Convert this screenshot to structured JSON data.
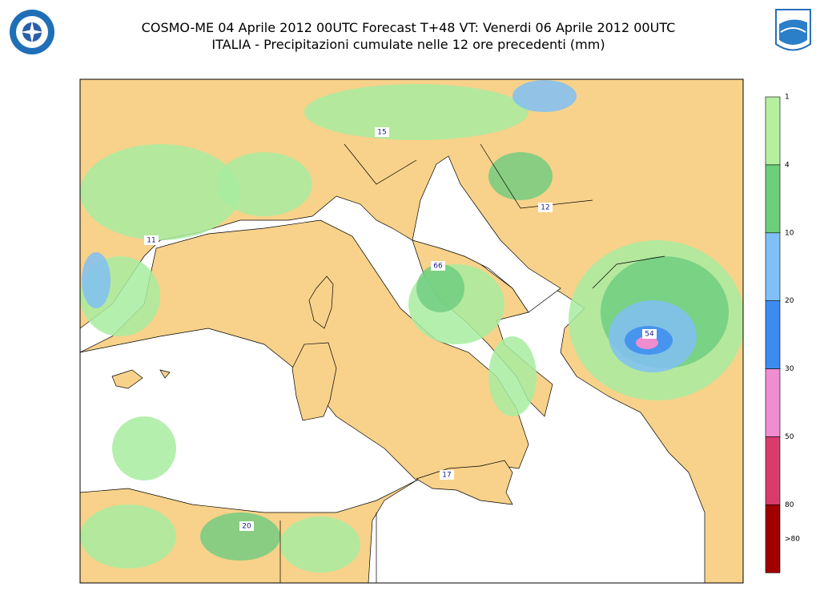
{
  "header": {
    "title_line1": "COSMO-ME 04 Aprile 2012 00UTC Forecast T+48 VT: Venerdi 06 Aprile 2012 00UTC",
    "title_line2": "ITALIA - Precipitazioni cumulate nelle 12 ore precedenti (mm)"
  },
  "map": {
    "labels": [
      {
        "text": "15"
      },
      {
        "text": "12"
      },
      {
        "text": "11"
      },
      {
        "text": "66"
      },
      {
        "text": "54"
      },
      {
        "text": "17"
      },
      {
        "text": "20"
      }
    ]
  },
  "legend": {
    "items": [
      {
        "label": "1",
        "color": "#b4f0a0"
      },
      {
        "label": "4",
        "color": "#6ccf7a"
      },
      {
        "label": "10",
        "color": "#80c0f8"
      },
      {
        "label": "20",
        "color": "#3c8cf0"
      },
      {
        "label": "30",
        "color": "#f08cd0"
      },
      {
        "label": "50",
        "color": "#d83c6c"
      },
      {
        "label": "80",
        "color": "#a00000"
      }
    ],
    "last_label": ">80"
  }
}
